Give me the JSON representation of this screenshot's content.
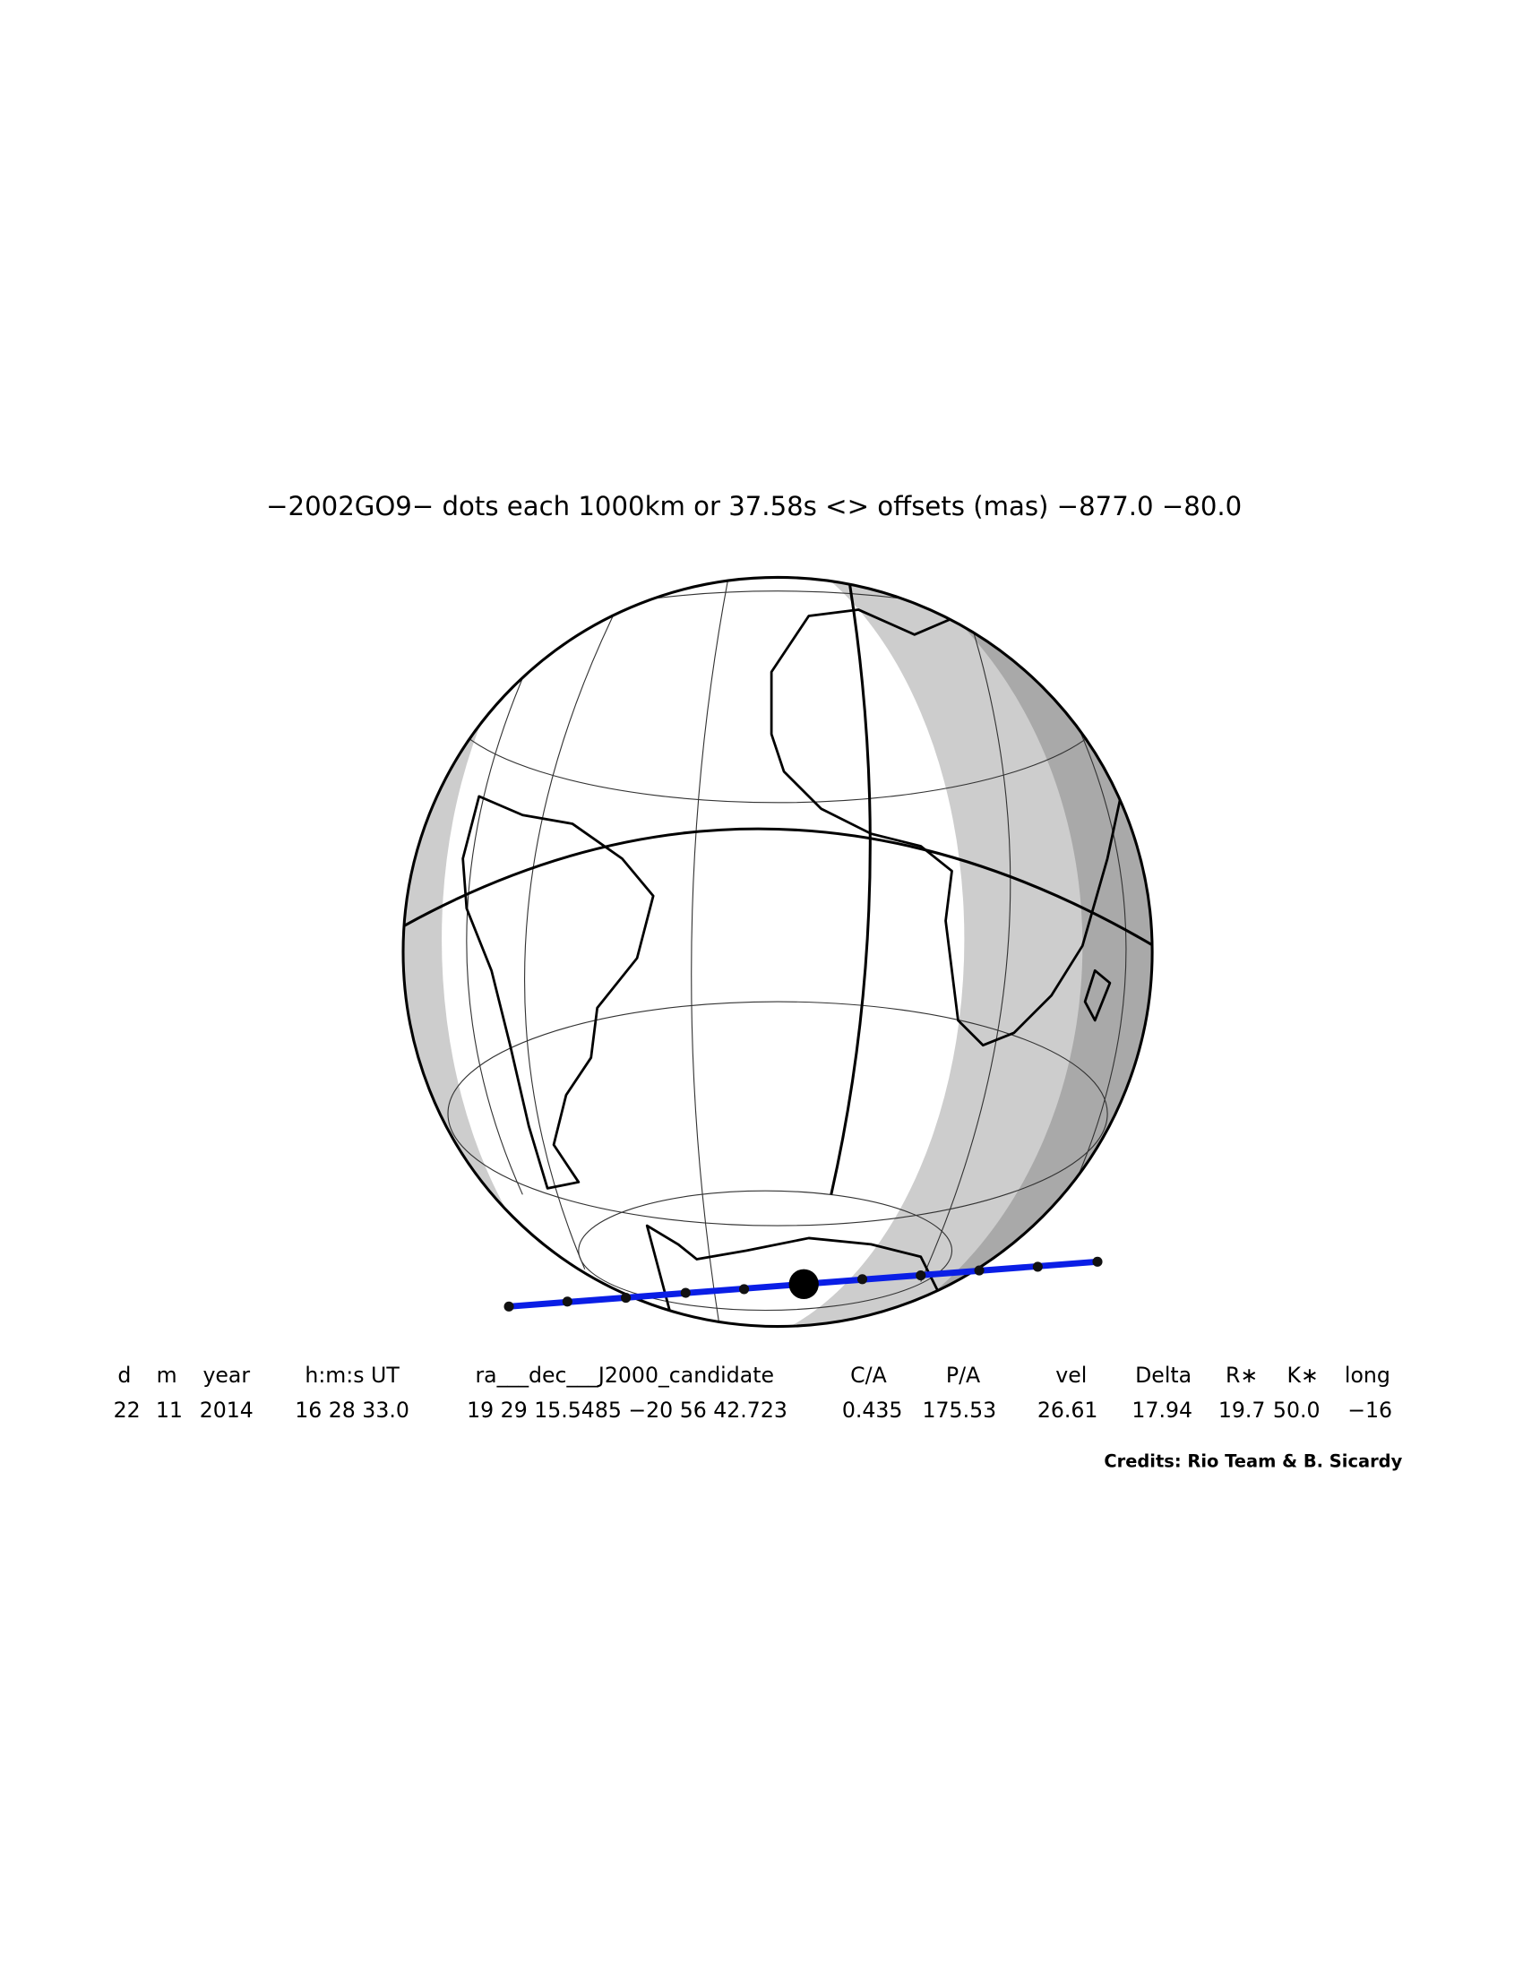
{
  "title": "−2002GO9− dots each 1000km or 37.58s <> offsets (mas) −877.0  −80.0",
  "table": {
    "headers": [
      "d",
      "m",
      "year",
      "h:m:s UT",
      "ra___dec___J2000_candidate",
      "C/A",
      "P/A",
      "vel",
      "Delta",
      "R∗",
      "K∗",
      "long"
    ],
    "rows": [
      [
        "22",
        "11",
        "2014",
        "16 28 33.0",
        "19 29 15.5485 −20 56 42.723",
        "0.435",
        "175.53",
        "26.61",
        "17.94",
        "19.7",
        "50.0",
        "−16"
      ]
    ]
  },
  "credits": "Credits: Rio Team & B. Sicardy"
}
